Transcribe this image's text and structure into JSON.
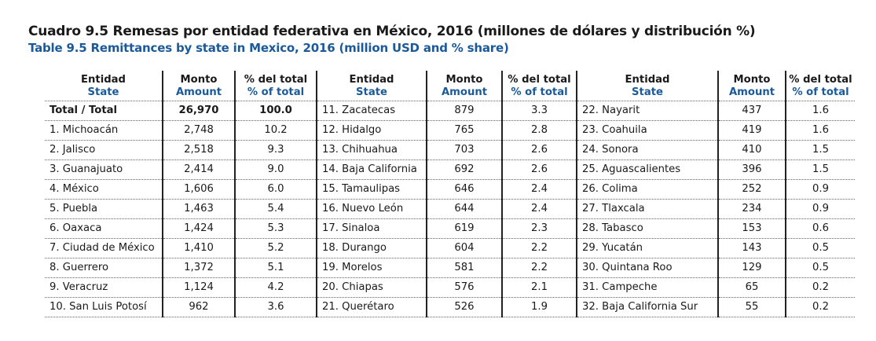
{
  "title": {
    "spanish": "Cuadro 9.5 Remesas por entidad federativa en México, 2016 (millones de dólares y distribución %)",
    "english": "Table 9.5 Remittances by state in Mexico, 2016 (million USD and % share)"
  },
  "headers": {
    "state_es": "Entidad",
    "state_en": "State",
    "amount_es": "Monto",
    "amount_en": "Amount",
    "pct_es": "% del total",
    "pct_en": "% of total"
  },
  "colors": {
    "title_dark": "#1a1a1a",
    "title_blue": "#1b5a9a"
  },
  "rows": [
    [
      {
        "state": "Total / Total",
        "amount": "26,970",
        "pct": "100.0"
      },
      {
        "state": "11. Zacatecas",
        "amount": "879",
        "pct": "3.3"
      },
      {
        "state": "22. Nayarit",
        "amount": "437",
        "pct": "1.6"
      }
    ],
    [
      {
        "state": "1. Michoacán",
        "amount": "2,748",
        "pct": "10.2"
      },
      {
        "state": "12. Hidalgo",
        "amount": "765",
        "pct": "2.8"
      },
      {
        "state": "23. Coahuila",
        "amount": "419",
        "pct": "1.6"
      }
    ],
    [
      {
        "state": "2. Jalisco",
        "amount": "2,518",
        "pct": "9.3"
      },
      {
        "state": "13. Chihuahua",
        "amount": "703",
        "pct": "2.6"
      },
      {
        "state": "24. Sonora",
        "amount": "410",
        "pct": "1.5"
      }
    ],
    [
      {
        "state": "3. Guanajuato",
        "amount": "2,414",
        "pct": "9.0"
      },
      {
        "state": "14. Baja California",
        "amount": "692",
        "pct": "2.6"
      },
      {
        "state": "25. Aguascalientes",
        "amount": "396",
        "pct": "1.5"
      }
    ],
    [
      {
        "state": "4. México",
        "amount": "1,606",
        "pct": "6.0"
      },
      {
        "state": "15. Tamaulipas",
        "amount": "646",
        "pct": "2.4"
      },
      {
        "state": "26. Colima",
        "amount": "252",
        "pct": "0.9"
      }
    ],
    [
      {
        "state": "5. Puebla",
        "amount": "1,463",
        "pct": "5.4"
      },
      {
        "state": "16. Nuevo León",
        "amount": "644",
        "pct": "2.4"
      },
      {
        "state": "27. Tlaxcala",
        "amount": "234",
        "pct": "0.9"
      }
    ],
    [
      {
        "state": "6. Oaxaca",
        "amount": "1,424",
        "pct": "5.3"
      },
      {
        "state": "17. Sinaloa",
        "amount": "619",
        "pct": "2.3"
      },
      {
        "state": "28. Tabasco",
        "amount": "153",
        "pct": "0.6"
      }
    ],
    [
      {
        "state": "7. Ciudad de México",
        "amount": "1,410",
        "pct": "5.2"
      },
      {
        "state": "18. Durango",
        "amount": "604",
        "pct": "2.2"
      },
      {
        "state": "29. Yucatán",
        "amount": "143",
        "pct": "0.5"
      }
    ],
    [
      {
        "state": "8. Guerrero",
        "amount": "1,372",
        "pct": "5.1"
      },
      {
        "state": "19. Morelos",
        "amount": "581",
        "pct": "2.2"
      },
      {
        "state": "30. Quintana Roo",
        "amount": "129",
        "pct": "0.5"
      }
    ],
    [
      {
        "state": "9. Veracruz",
        "amount": "1,124",
        "pct": "4.2"
      },
      {
        "state": "20. Chiapas",
        "amount": "576",
        "pct": "2.1"
      },
      {
        "state": "31. Campeche",
        "amount": "65",
        "pct": "0.2"
      }
    ],
    [
      {
        "state": "10. San Luis Potosí",
        "amount": "962",
        "pct": "3.6"
      },
      {
        "state": "21. Querétaro",
        "amount": "526",
        "pct": "1.9"
      },
      {
        "state": "32. Baja California Sur",
        "amount": "55",
        "pct": "0.2"
      }
    ]
  ]
}
